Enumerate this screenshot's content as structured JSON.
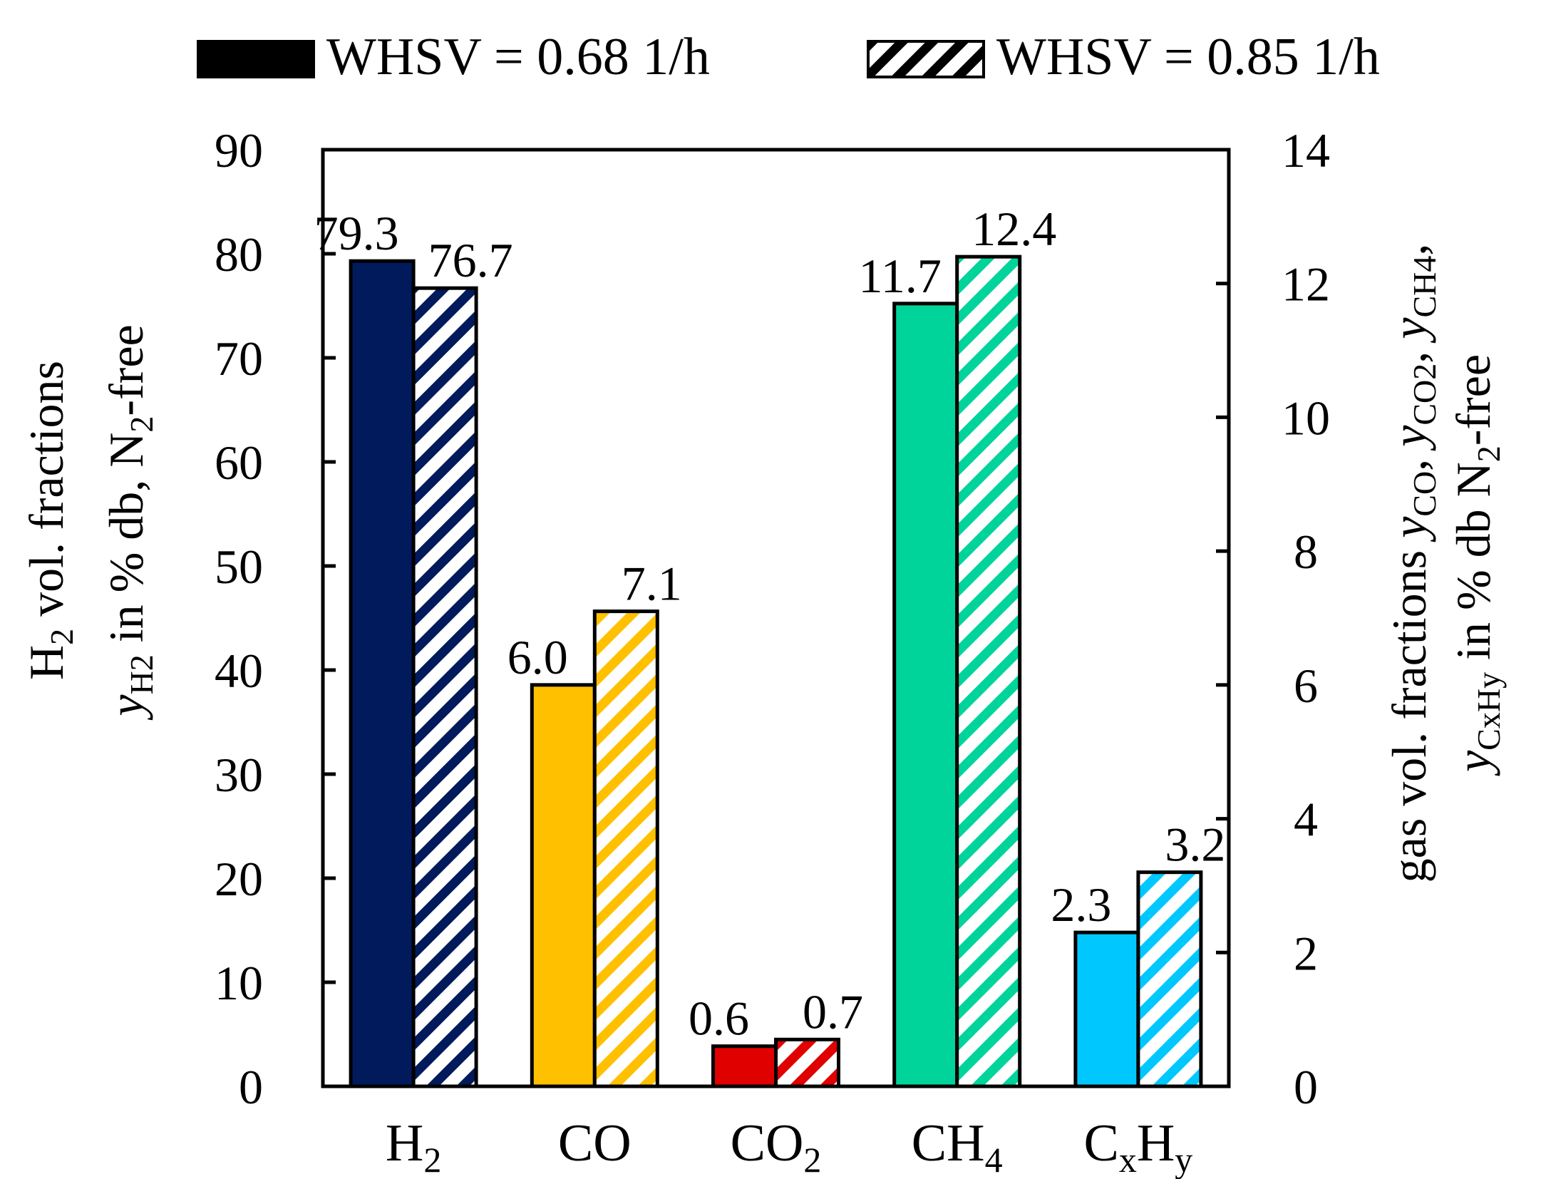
{
  "chart_data": {
    "type": "bar",
    "categories": [
      "H2",
      "CO",
      "CO2",
      "CH4",
      "CxHy"
    ],
    "category_labels": [
      {
        "base": "H",
        "sub": "2",
        "base2": "",
        "sub2": ""
      },
      {
        "base": "CO",
        "sub": "",
        "base2": "",
        "sub2": ""
      },
      {
        "base": "CO",
        "sub": "2",
        "base2": "",
        "sub2": ""
      },
      {
        "base": "CH",
        "sub": "4",
        "base2": "",
        "sub2": ""
      },
      {
        "base": "C",
        "sub": "x",
        "base2": "H",
        "sub2": "y"
      }
    ],
    "axis_assignment": [
      "left",
      "right",
      "right",
      "right",
      "right"
    ],
    "colors": [
      "#001a5c",
      "#ffc000",
      "#e00000",
      "#00d49a",
      "#00c8ff"
    ],
    "series": [
      {
        "name": "WHSV = 0.68 1/h",
        "pattern": "solid",
        "values": [
          79.3,
          6.0,
          0.6,
          11.7,
          2.3
        ],
        "labels": [
          "79.3",
          "6.0",
          "0.6",
          "11.7",
          "2.3"
        ]
      },
      {
        "name": "WHSV = 0.85 1/h",
        "pattern": "hatched",
        "values": [
          76.7,
          7.1,
          0.7,
          12.4,
          3.2
        ],
        "labels": [
          "76.7",
          "7.1",
          "0.7",
          "12.4",
          "3.2"
        ]
      }
    ],
    "left_axis": {
      "ylim": [
        0,
        90
      ],
      "ticks": [
        "0",
        "10",
        "20",
        "30",
        "40",
        "50",
        "60",
        "70",
        "80",
        "90"
      ],
      "title_line1": {
        "a": "H",
        "sub": "2",
        "b": " vol. fractions"
      },
      "title_line2": {
        "y": "y",
        "ysub": "H2",
        "a": " in % db, N",
        "sub": "2",
        "b": "-free"
      }
    },
    "right_axis": {
      "ylim": [
        0,
        14
      ],
      "ticks": [
        "0",
        "2",
        "4",
        "6",
        "8",
        "10",
        "12",
        "14"
      ],
      "title_line1": {
        "a": "gas vol. fractions ",
        "y1": "y",
        "s1": "CO",
        "c1": ", ",
        "y2": "y",
        "s2": "CO2",
        "c2": ", ",
        "y3": "y",
        "s3": "CH4",
        "c3": ","
      },
      "title_line2": {
        "y": "y",
        "ysub": "CxHy",
        "a": "  in % db N",
        "sub": "2",
        "b": "-free"
      }
    },
    "legend": {
      "placement": "top"
    },
    "title": "",
    "grid": false
  }
}
